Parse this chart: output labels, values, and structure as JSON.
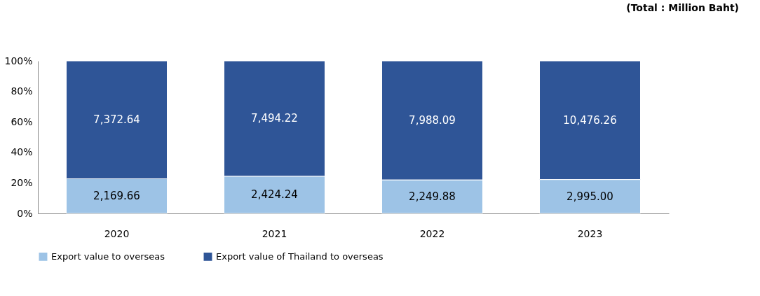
{
  "chart_data": {
    "type": "bar",
    "stacked": true,
    "categories": [
      "2020",
      "2021",
      "2022",
      "2023"
    ],
    "series": [
      {
        "name": "Export value to overseas",
        "color": "#9dc3e6",
        "values": [
          22.7,
          24.4,
          22.0,
          22.2
        ]
      },
      {
        "name": "Export value of Thailand to overseas",
        "color": "#2f5597",
        "values": [
          77.3,
          75.6,
          78.0,
          77.8
        ]
      }
    ],
    "ylim": [
      0,
      100
    ],
    "yticks": [
      {
        "value": 0,
        "label": "0%"
      },
      {
        "value": 20,
        "label": "20%"
      },
      {
        "value": 40,
        "label": "40%"
      },
      {
        "value": 60,
        "label": "60%"
      },
      {
        "value": 80,
        "label": "80%"
      },
      {
        "value": 100,
        "label": "100%"
      }
    ],
    "grid": false,
    "legend": "bottom",
    "annotations": [
      "(Total : Million Baht)",
      "2,169.66",
      "2,424.24",
      "2,249.88",
      "2,995.00",
      "7,372.64",
      "7,494.22",
      "7,988.09",
      "10,476.26"
    ]
  }
}
